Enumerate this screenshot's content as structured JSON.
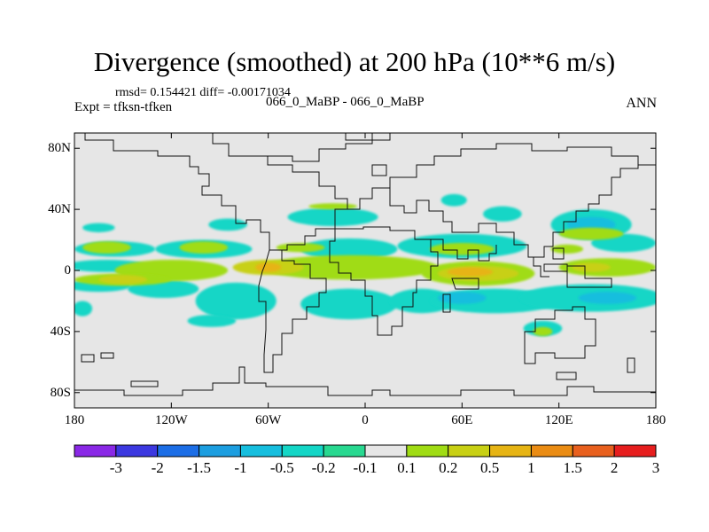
{
  "title": "Divergence (smoothed) at 200 hPa (10**6 m/s)",
  "stats": {
    "text": "rmsd= 0.154421 diff= -0.00171034"
  },
  "experiment": "Expt = tfksn-tfken",
  "case_label": "066_0_MaBP - 066_0_MaBP",
  "season": "ANN",
  "chart_data": {
    "type": "heatmap",
    "projection": "cylindrical-equidistant",
    "title": "Divergence (smoothed) at 200 hPa (10**6 m/s)",
    "variable": "Divergence (smoothed)",
    "level": "200 hPa",
    "units": "10**6 m/s",
    "xlim": [
      -180,
      180
    ],
    "ylim": [
      -90,
      90
    ],
    "x_ticks": [
      {
        "value": -180,
        "label": "180"
      },
      {
        "value": -120,
        "label": "120W"
      },
      {
        "value": -60,
        "label": "60W"
      },
      {
        "value": 0,
        "label": "0"
      },
      {
        "value": 60,
        "label": "60E"
      },
      {
        "value": 120,
        "label": "120E"
      },
      {
        "value": 180,
        "label": "180"
      }
    ],
    "y_ticks": [
      {
        "value": 80,
        "label": "80N"
      },
      {
        "value": 40,
        "label": "40N"
      },
      {
        "value": 0,
        "label": "0"
      },
      {
        "value": -40,
        "label": "40S"
      },
      {
        "value": -80,
        "label": "80S"
      }
    ],
    "colorbar": {
      "levels": [
        "-3",
        "-2",
        "-1.5",
        "-1",
        "-0.5",
        "-0.2",
        "-0.1",
        "0.1",
        "0.2",
        "0.5",
        "1",
        "1.5",
        "2",
        "3"
      ],
      "colors": [
        "#8a28e6",
        "#3c38e0",
        "#1c6ee6",
        "#1c9ee0",
        "#16bede",
        "#14d6c6",
        "#28d890",
        "#e6e6e6",
        "#a0dc14",
        "#c8d014",
        "#e6b414",
        "#ea8c14",
        "#e8601e",
        "#e61e1e"
      ]
    },
    "fields": [
      {
        "bin": 5,
        "lon": -165,
        "lat": 28,
        "rx": 10,
        "ry": 3
      },
      {
        "bin": 5,
        "lon": -85,
        "lat": 30,
        "rx": 12,
        "ry": 4
      },
      {
        "bin": 5,
        "lon": -20,
        "lat": 35,
        "rx": 28,
        "ry": 6
      },
      {
        "bin": 5,
        "lon": 55,
        "lat": 46,
        "rx": 8,
        "ry": 4
      },
      {
        "bin": 5,
        "lon": 85,
        "lat": 37,
        "rx": 12,
        "ry": 5
      },
      {
        "bin": 5,
        "lon": 140,
        "lat": 30,
        "rx": 25,
        "ry": 10
      },
      {
        "bin": 5,
        "lon": 160,
        "lat": 18,
        "rx": 20,
        "ry": 6
      },
      {
        "bin": 5,
        "lon": -155,
        "lat": 14,
        "rx": 25,
        "ry": 5
      },
      {
        "bin": 5,
        "lon": -100,
        "lat": 14,
        "rx": 30,
        "ry": 6
      },
      {
        "bin": 5,
        "lon": -10,
        "lat": 14,
        "rx": 30,
        "ry": 7
      },
      {
        "bin": 5,
        "lon": 60,
        "lat": 16,
        "rx": 40,
        "ry": 8
      },
      {
        "bin": 5,
        "lon": -160,
        "lat": 3,
        "rx": 25,
        "ry": 4
      },
      {
        "bin": 5,
        "lon": -165,
        "lat": -10,
        "rx": 20,
        "ry": 4
      },
      {
        "bin": 5,
        "lon": -125,
        "lat": -12,
        "rx": 22,
        "ry": 6
      },
      {
        "bin": 5,
        "lon": -80,
        "lat": -20,
        "rx": 25,
        "ry": 12
      },
      {
        "bin": 5,
        "lon": -10,
        "lat": -22,
        "rx": 30,
        "ry": 10
      },
      {
        "bin": 5,
        "lon": 35,
        "lat": -20,
        "rx": 20,
        "ry": 8
      },
      {
        "bin": 5,
        "lon": 80,
        "lat": -20,
        "rx": 40,
        "ry": 8
      },
      {
        "bin": 5,
        "lon": 140,
        "lat": -18,
        "rx": 45,
        "ry": 9
      },
      {
        "bin": 5,
        "lon": -95,
        "lat": -33,
        "rx": 15,
        "ry": 4
      },
      {
        "bin": 5,
        "lon": 110,
        "lat": -38,
        "rx": 12,
        "ry": 5
      },
      {
        "bin": 5,
        "lon": -175,
        "lat": -25,
        "rx": 6,
        "ry": 5
      },
      {
        "bin": 4,
        "lon": 140,
        "lat": 30,
        "rx": 15,
        "ry": 5
      },
      {
        "bin": 4,
        "lon": 60,
        "lat": -18,
        "rx": 15,
        "ry": 4
      },
      {
        "bin": 4,
        "lon": 150,
        "lat": -18,
        "rx": 18,
        "ry": 4
      },
      {
        "bin": 8,
        "lon": -20,
        "lat": 42,
        "rx": 15,
        "ry": 2
      },
      {
        "bin": 8,
        "lon": 140,
        "lat": 24,
        "rx": 20,
        "ry": 4
      },
      {
        "bin": 8,
        "lon": -160,
        "lat": 15,
        "rx": 15,
        "ry": 4
      },
      {
        "bin": 8,
        "lon": -100,
        "lat": 15,
        "rx": 15,
        "ry": 4
      },
      {
        "bin": 8,
        "lon": -40,
        "lat": 15,
        "rx": 15,
        "ry": 3
      },
      {
        "bin": 8,
        "lon": 60,
        "lat": 14,
        "rx": 20,
        "ry": 4
      },
      {
        "bin": 8,
        "lon": 125,
        "lat": 14,
        "rx": 10,
        "ry": 3
      },
      {
        "bin": 8,
        "lon": -120,
        "lat": 0,
        "rx": 35,
        "ry": 7
      },
      {
        "bin": 8,
        "lon": -10,
        "lat": 2,
        "rx": 55,
        "ry": 8
      },
      {
        "bin": 8,
        "lon": 70,
        "lat": -2,
        "rx": 35,
        "ry": 8
      },
      {
        "bin": 8,
        "lon": 150,
        "lat": 2,
        "rx": 30,
        "ry": 6
      },
      {
        "bin": 8,
        "lon": -150,
        "lat": -6,
        "rx": 30,
        "ry": 4
      },
      {
        "bin": 8,
        "lon": 110,
        "lat": -40,
        "rx": 6,
        "ry": 3
      },
      {
        "bin": 9,
        "lon": -60,
        "lat": 2,
        "rx": 22,
        "ry": 5
      },
      {
        "bin": 9,
        "lon": 70,
        "lat": -2,
        "rx": 25,
        "ry": 5
      },
      {
        "bin": 9,
        "lon": -150,
        "lat": -6,
        "rx": 15,
        "ry": 3
      },
      {
        "bin": 9,
        "lon": 140,
        "lat": 2,
        "rx": 12,
        "ry": 3
      },
      {
        "bin": 10,
        "lon": 65,
        "lat": -1,
        "rx": 14,
        "ry": 3
      },
      {
        "bin": 10,
        "lon": -60,
        "lat": 2,
        "rx": 8,
        "ry": 3
      }
    ]
  }
}
